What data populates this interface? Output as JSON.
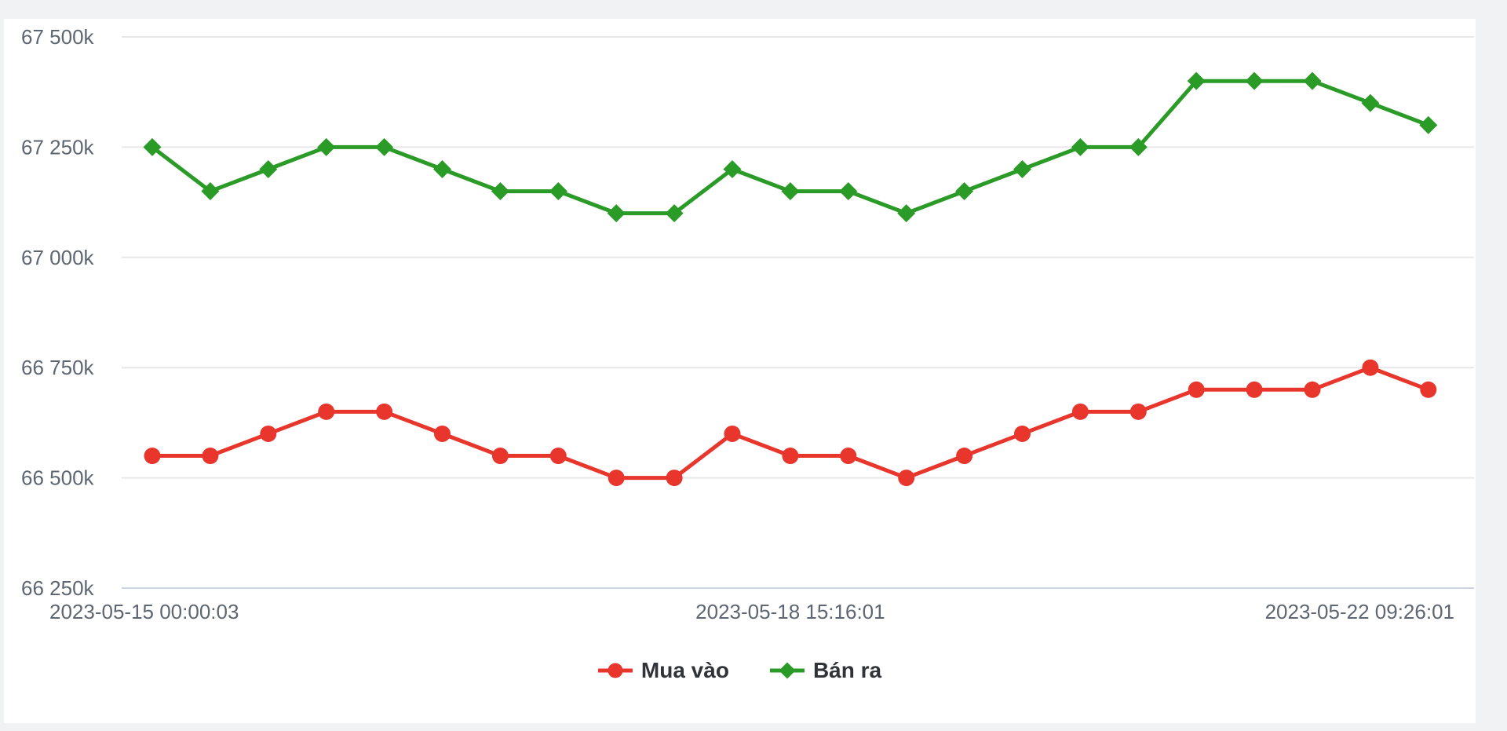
{
  "chart_data": {
    "type": "line",
    "title": "",
    "xlabel": "",
    "ylabel": "",
    "ylim": [
      66250,
      67500
    ],
    "grid": "horizontal",
    "legend_position": "bottom-center",
    "unit_suffix": "k",
    "y_ticks": [
      {
        "label": "67 500k",
        "value": 67500
      },
      {
        "label": "67 250k",
        "value": 67250
      },
      {
        "label": "67 000k",
        "value": 67000
      },
      {
        "label": "66 750k",
        "value": 66750
      },
      {
        "label": "66 500k",
        "value": 66500
      },
      {
        "label": "66 250k",
        "value": 66250
      }
    ],
    "x_ticks": [
      {
        "label": "2023-05-15 00:00:03",
        "index": 0
      },
      {
        "label": "2023-05-18 15:16:01",
        "index": 11
      },
      {
        "label": "2023-05-22 09:26:01",
        "index": 22
      }
    ],
    "num_points": 23,
    "series": [
      {
        "name": "Mua vào",
        "color": "#e8362c",
        "marker": "circle",
        "values": [
          66550,
          66550,
          66600,
          66650,
          66650,
          66600,
          66550,
          66550,
          66500,
          66500,
          66600,
          66550,
          66550,
          66500,
          66550,
          66600,
          66650,
          66650,
          66700,
          66700,
          66700,
          66750,
          66700
        ]
      },
      {
        "name": "Bán ra",
        "color": "#2b9b27",
        "marker": "diamond",
        "values": [
          67250,
          67150,
          67200,
          67250,
          67250,
          67200,
          67150,
          67150,
          67100,
          67100,
          67200,
          67150,
          67150,
          67100,
          67150,
          67200,
          67250,
          67250,
          67400,
          67400,
          67400,
          67350,
          67300
        ]
      }
    ]
  },
  "colors": {
    "page_bg": "#f1f2f4",
    "card_bg": "#ffffff",
    "gridline": "#e8e8e8",
    "axis_line": "#ccd3e2",
    "tick_text": "#5e6671",
    "legend_text": "#303338"
  }
}
